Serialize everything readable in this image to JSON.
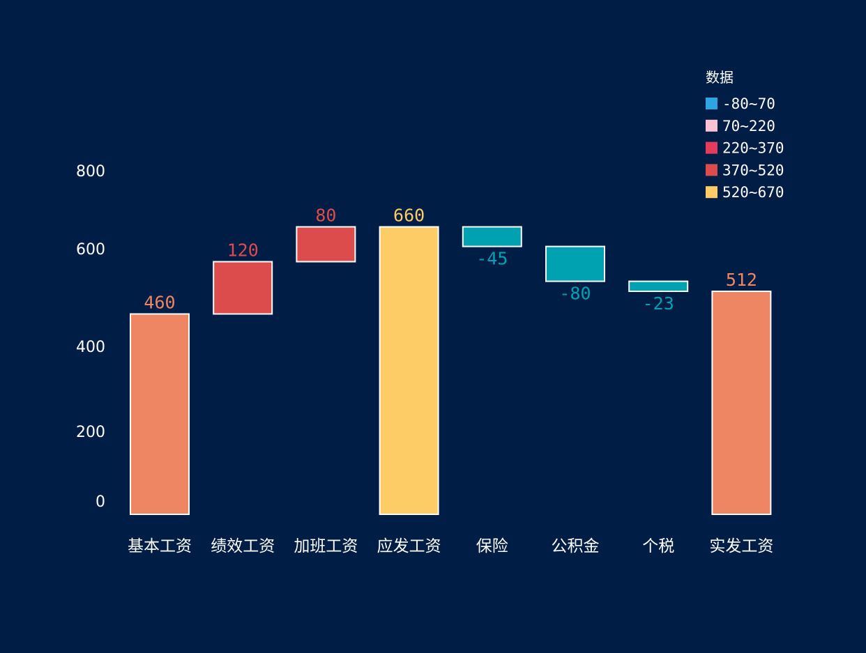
{
  "chart_data": {
    "type": "bar",
    "subtype": "waterfall",
    "categories": [
      "基本工资",
      "绩效工资",
      "加班工资",
      "应发工资",
      "保险",
      "公积金",
      "个税",
      "实发工资"
    ],
    "values": [
      460,
      120,
      80,
      660,
      -45,
      -80,
      -23,
      512
    ],
    "value_labels": [
      "460",
      "120",
      "80",
      "660",
      "-45",
      "-80",
      "-23",
      "512"
    ],
    "totals": [
      true,
      false,
      false,
      true,
      false,
      false,
      false,
      true
    ],
    "yticks": [
      0,
      200,
      400,
      600,
      800
    ],
    "ylim": [
      0,
      800
    ],
    "grid": false,
    "legend": {
      "title": "数据",
      "position": "top-right",
      "items": [
        {
          "label": "-80~70",
          "color": "#2ca5e0"
        },
        {
          "label": "70~220",
          "color": "#fbc2d4"
        },
        {
          "label": "220~370",
          "color": "#e43d5c"
        },
        {
          "label": "370~520",
          "color": "#dd4c4c"
        },
        {
          "label": "520~670",
          "color": "#fdcc66"
        }
      ]
    },
    "colors": {
      "base_total": "#ee8664",
      "increase": "#dd4c4c",
      "gross_total": "#fdcc66",
      "decrease": "#00a2b2",
      "bar_stroke": "#ffffff",
      "background": "#001d45"
    },
    "bar_colors": [
      "#ee8664",
      "#dd4c4c",
      "#dd4c4c",
      "#fdcc66",
      "#00a2b2",
      "#00a2b2",
      "#00a2b2",
      "#ee8664"
    ],
    "label_colors": [
      "#ee8664",
      "#dd4c4c",
      "#dd4c4c",
      "#fdcc66",
      "#00a2b2",
      "#00a2b2",
      "#00a2b2",
      "#ee8664"
    ]
  }
}
